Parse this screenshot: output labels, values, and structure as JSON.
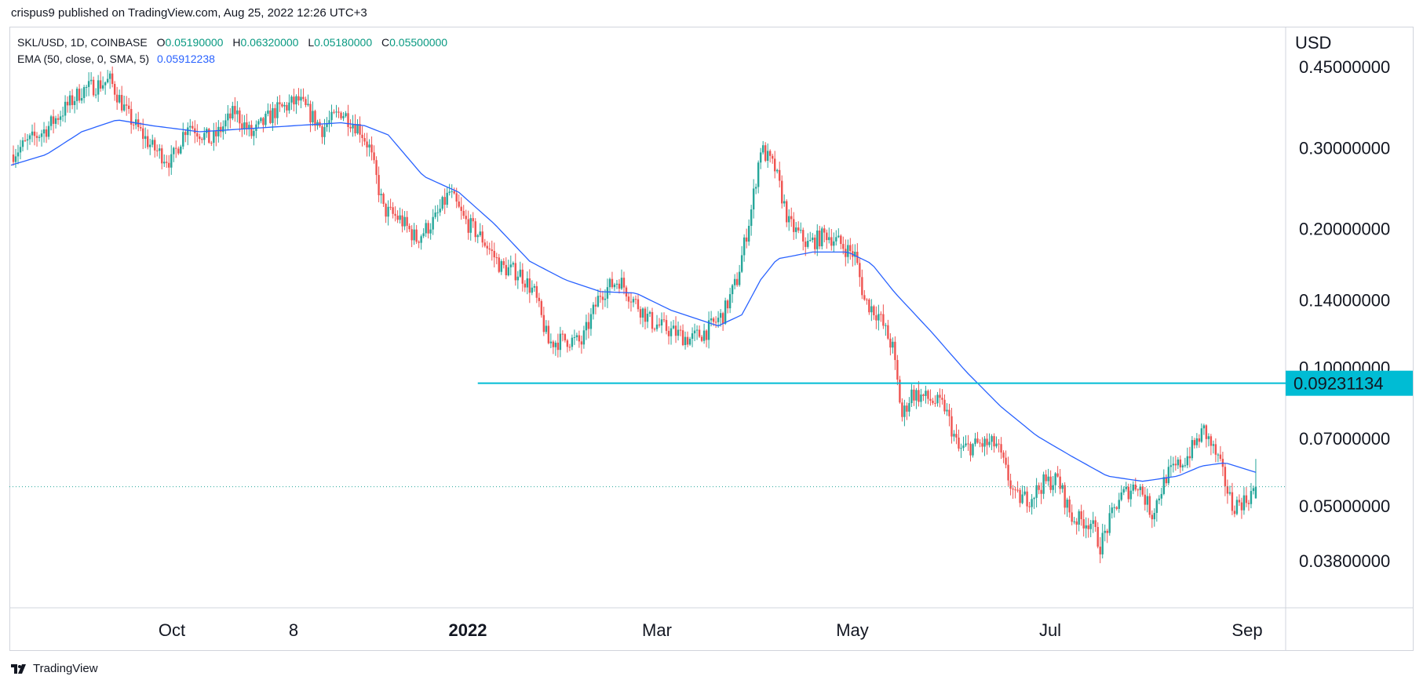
{
  "header": {
    "publish_line": "crispus9 published on TradingView.com, Aug 25, 2022 12:26 UTC+3"
  },
  "legend": {
    "symbol": "SKL/USD, 1D, COINBASE",
    "open_label": "O",
    "open": "0.05190000",
    "high_label": "H",
    "high": "0.06320000",
    "low_label": "L",
    "low": "0.05180000",
    "close_label": "C",
    "close": "0.05500000",
    "ema_label": "EMA (50, close, 0, SMA, 5)",
    "ema_value": "0.05912238"
  },
  "axis": {
    "currency": "USD"
  },
  "footer": {
    "brand": "TradingView"
  },
  "colors": {
    "up": "#26a69a",
    "down": "#ef5350",
    "ema": "#2962ff",
    "hline": "#00bcd4",
    "price_dotted": "#26a69a"
  },
  "chart_data": {
    "type": "candlestick",
    "symbol": "SKL/USD",
    "interval": "1D",
    "exchange": "COINBASE",
    "y_scale": "log",
    "ylim": [
      0.03,
      0.55
    ],
    "y_ticks": [
      {
        "value": 0.45,
        "label": "0.45000000"
      },
      {
        "value": 0.3,
        "label": "0.30000000"
      },
      {
        "value": 0.2,
        "label": "0.20000000"
      },
      {
        "value": 0.14,
        "label": "0.14000000"
      },
      {
        "value": 0.1,
        "label": "0.10000000"
      },
      {
        "value": 0.07,
        "label": "0.07000000"
      },
      {
        "value": 0.05,
        "label": "0.05000000"
      },
      {
        "value": 0.038,
        "label": "0.03800000"
      }
    ],
    "x_ticks": [
      {
        "label": "Oct",
        "bold": false
      },
      {
        "label": "8",
        "bold": false
      },
      {
        "label": "2022",
        "bold": true
      },
      {
        "label": "Mar",
        "bold": false
      },
      {
        "label": "May",
        "bold": false
      },
      {
        "label": "Jul",
        "bold": false
      },
      {
        "label": "Sep",
        "bold": false
      }
    ],
    "horizontal_line": {
      "value": 0.09231134,
      "label": "0.09231134"
    },
    "last_price": 0.055,
    "close_path": [
      {
        "t": 0,
        "p": 0.29
      },
      {
        "t": 15,
        "p": 0.33
      },
      {
        "t": 30,
        "p": 0.4
      },
      {
        "t": 42,
        "p": 0.42
      },
      {
        "t": 50,
        "p": 0.35
      },
      {
        "t": 60,
        "p": 0.3
      },
      {
        "t": 68,
        "p": 0.28
      },
      {
        "t": 75,
        "p": 0.34
      },
      {
        "t": 85,
        "p": 0.31
      },
      {
        "t": 95,
        "p": 0.36
      },
      {
        "t": 102,
        "p": 0.32
      },
      {
        "t": 112,
        "p": 0.36
      },
      {
        "t": 122,
        "p": 0.38
      },
      {
        "t": 132,
        "p": 0.33
      },
      {
        "t": 140,
        "p": 0.36
      },
      {
        "t": 148,
        "p": 0.33
      },
      {
        "t": 152,
        "p": 0.3
      },
      {
        "t": 158,
        "p": 0.22
      },
      {
        "t": 165,
        "p": 0.21
      },
      {
        "t": 172,
        "p": 0.19
      },
      {
        "t": 180,
        "p": 0.21
      },
      {
        "t": 186,
        "p": 0.24
      },
      {
        "t": 192,
        "p": 0.21
      },
      {
        "t": 200,
        "p": 0.19
      },
      {
        "t": 208,
        "p": 0.165
      },
      {
        "t": 216,
        "p": 0.16
      },
      {
        "t": 222,
        "p": 0.145
      },
      {
        "t": 228,
        "p": 0.113
      },
      {
        "t": 236,
        "p": 0.115
      },
      {
        "t": 242,
        "p": 0.113
      },
      {
        "t": 250,
        "p": 0.145
      },
      {
        "t": 258,
        "p": 0.155
      },
      {
        "t": 264,
        "p": 0.14
      },
      {
        "t": 272,
        "p": 0.125
      },
      {
        "t": 280,
        "p": 0.12
      },
      {
        "t": 288,
        "p": 0.115
      },
      {
        "t": 295,
        "p": 0.12
      },
      {
        "t": 302,
        "p": 0.13
      },
      {
        "t": 308,
        "p": 0.155
      },
      {
        "t": 314,
        "p": 0.22
      },
      {
        "t": 318,
        "p": 0.3
      },
      {
        "t": 324,
        "p": 0.27
      },
      {
        "t": 330,
        "p": 0.205
      },
      {
        "t": 338,
        "p": 0.185
      },
      {
        "t": 346,
        "p": 0.195
      },
      {
        "t": 352,
        "p": 0.185
      },
      {
        "t": 358,
        "p": 0.175
      },
      {
        "t": 362,
        "p": 0.14
      },
      {
        "t": 368,
        "p": 0.13
      },
      {
        "t": 374,
        "p": 0.11
      },
      {
        "t": 378,
        "p": 0.078
      },
      {
        "t": 382,
        "p": 0.088
      },
      {
        "t": 390,
        "p": 0.085
      },
      {
        "t": 396,
        "p": 0.082
      },
      {
        "t": 402,
        "p": 0.066
      },
      {
        "t": 410,
        "p": 0.068
      },
      {
        "t": 418,
        "p": 0.068
      },
      {
        "t": 426,
        "p": 0.052
      },
      {
        "t": 432,
        "p": 0.052
      },
      {
        "t": 438,
        "p": 0.056
      },
      {
        "t": 444,
        "p": 0.057
      },
      {
        "t": 450,
        "p": 0.047
      },
      {
        "t": 458,
        "p": 0.046
      },
      {
        "t": 462,
        "p": 0.041
      },
      {
        "t": 470,
        "p": 0.052
      },
      {
        "t": 478,
        "p": 0.056
      },
      {
        "t": 484,
        "p": 0.048
      },
      {
        "t": 490,
        "p": 0.058
      },
      {
        "t": 498,
        "p": 0.063
      },
      {
        "t": 506,
        "p": 0.073
      },
      {
        "t": 512,
        "p": 0.063
      },
      {
        "t": 518,
        "p": 0.05
      },
      {
        "t": 524,
        "p": 0.0515
      },
      {
        "t": 528,
        "p": 0.055
      }
    ],
    "ema_path": [
      {
        "t": 0,
        "p": 0.275
      },
      {
        "t": 15,
        "p": 0.29
      },
      {
        "t": 30,
        "p": 0.325
      },
      {
        "t": 45,
        "p": 0.345
      },
      {
        "t": 60,
        "p": 0.335
      },
      {
        "t": 80,
        "p": 0.325
      },
      {
        "t": 100,
        "p": 0.33
      },
      {
        "t": 120,
        "p": 0.335
      },
      {
        "t": 140,
        "p": 0.34
      },
      {
        "t": 150,
        "p": 0.335
      },
      {
        "t": 160,
        "p": 0.32
      },
      {
        "t": 175,
        "p": 0.26
      },
      {
        "t": 190,
        "p": 0.24
      },
      {
        "t": 205,
        "p": 0.205
      },
      {
        "t": 220,
        "p": 0.17
      },
      {
        "t": 235,
        "p": 0.155
      },
      {
        "t": 250,
        "p": 0.146
      },
      {
        "t": 265,
        "p": 0.145
      },
      {
        "t": 280,
        "p": 0.133
      },
      {
        "t": 300,
        "p": 0.123
      },
      {
        "t": 310,
        "p": 0.13
      },
      {
        "t": 318,
        "p": 0.155
      },
      {
        "t": 325,
        "p": 0.172
      },
      {
        "t": 340,
        "p": 0.178
      },
      {
        "t": 355,
        "p": 0.178
      },
      {
        "t": 365,
        "p": 0.168
      },
      {
        "t": 375,
        "p": 0.145
      },
      {
        "t": 390,
        "p": 0.12
      },
      {
        "t": 405,
        "p": 0.098
      },
      {
        "t": 420,
        "p": 0.082
      },
      {
        "t": 435,
        "p": 0.071
      },
      {
        "t": 450,
        "p": 0.064
      },
      {
        "t": 465,
        "p": 0.058
      },
      {
        "t": 480,
        "p": 0.0565
      },
      {
        "t": 495,
        "p": 0.058
      },
      {
        "t": 505,
        "p": 0.061
      },
      {
        "t": 515,
        "p": 0.062
      },
      {
        "t": 528,
        "p": 0.0591
      }
    ]
  }
}
